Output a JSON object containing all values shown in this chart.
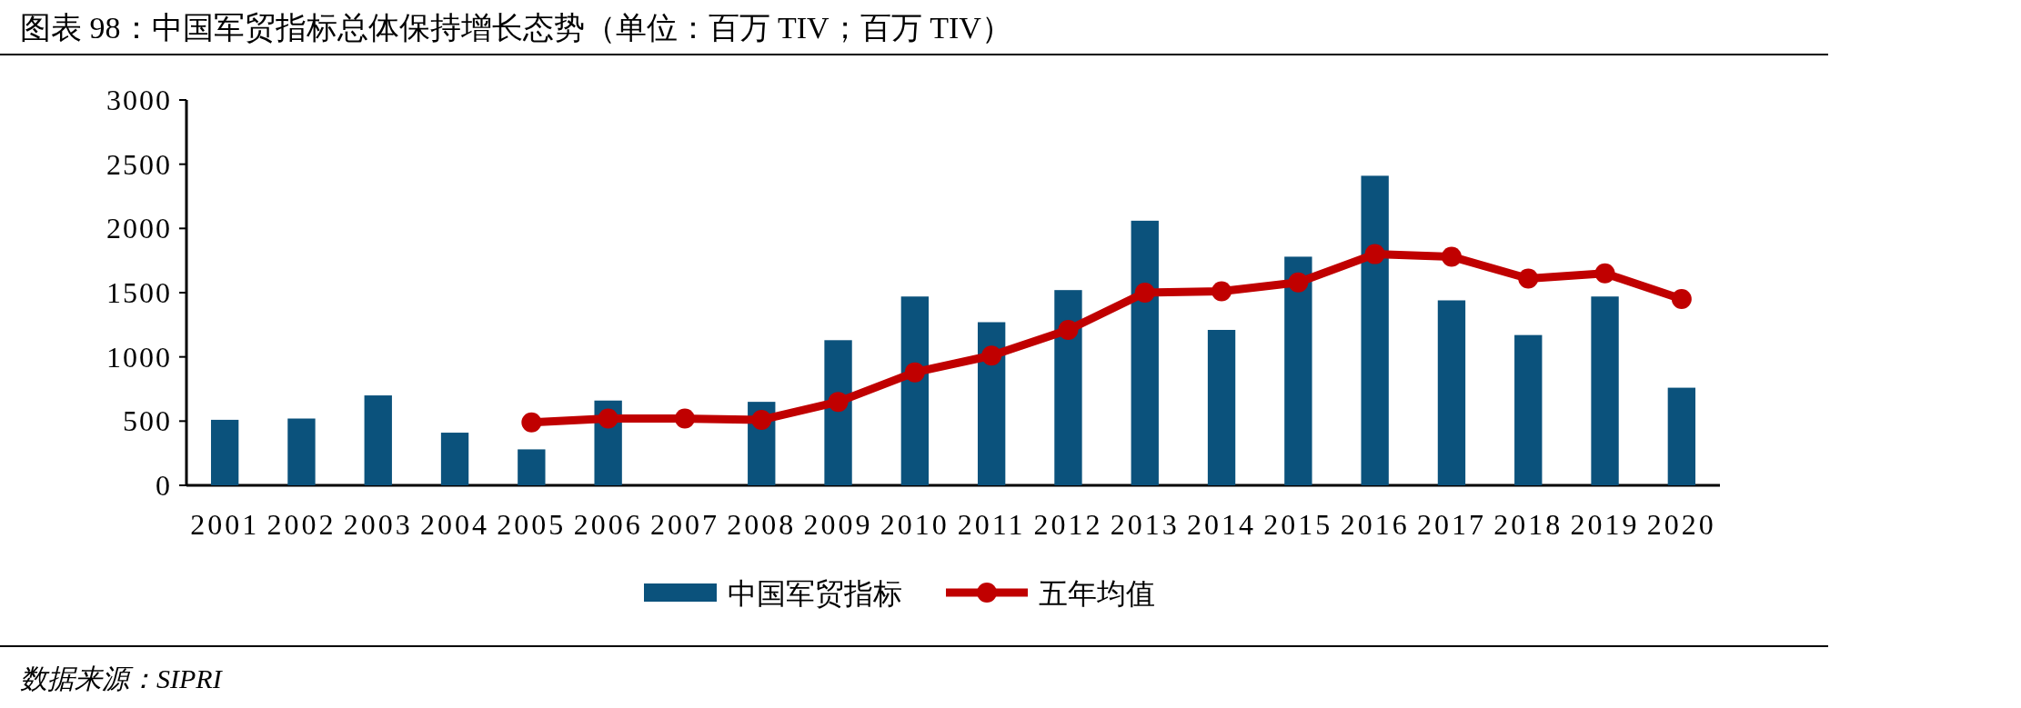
{
  "chart_data": {
    "type": "bar",
    "title": "图表 98：中国军贸指标总体保持增长态势（单位：百万 TIV；百万 TIV）",
    "categories": [
      "2001",
      "2002",
      "2003",
      "2004",
      "2005",
      "2006",
      "2007",
      "2008",
      "2009",
      "2010",
      "2011",
      "2012",
      "2013",
      "2014",
      "2015",
      "2016",
      "2017",
      "2018",
      "2019",
      "2020"
    ],
    "series": [
      {
        "name": "中国军贸指标",
        "color": "#0b527c",
        "values": [
          510,
          520,
          700,
          410,
          280,
          660,
          null,
          650,
          1130,
          1470,
          1270,
          1520,
          2060,
          1210,
          1780,
          2410,
          1440,
          1170,
          1470,
          760
        ]
      },
      {
        "name": "五年均值",
        "type": "line",
        "color": "#c00000",
        "marker": "circle",
        "values": [
          null,
          null,
          null,
          null,
          490,
          520,
          520,
          510,
          650,
          880,
          1010,
          1210,
          1500,
          1510,
          1580,
          1800,
          1780,
          1610,
          1650,
          1450
        ]
      }
    ],
    "ylim": [
      0,
      3000
    ],
    "yticks": [
      0,
      500,
      1000,
      1500,
      2000,
      2500,
      3000
    ],
    "grid": false,
    "legend": "bottom",
    "annotations": [
      "数据来源：SIPRI"
    ]
  }
}
